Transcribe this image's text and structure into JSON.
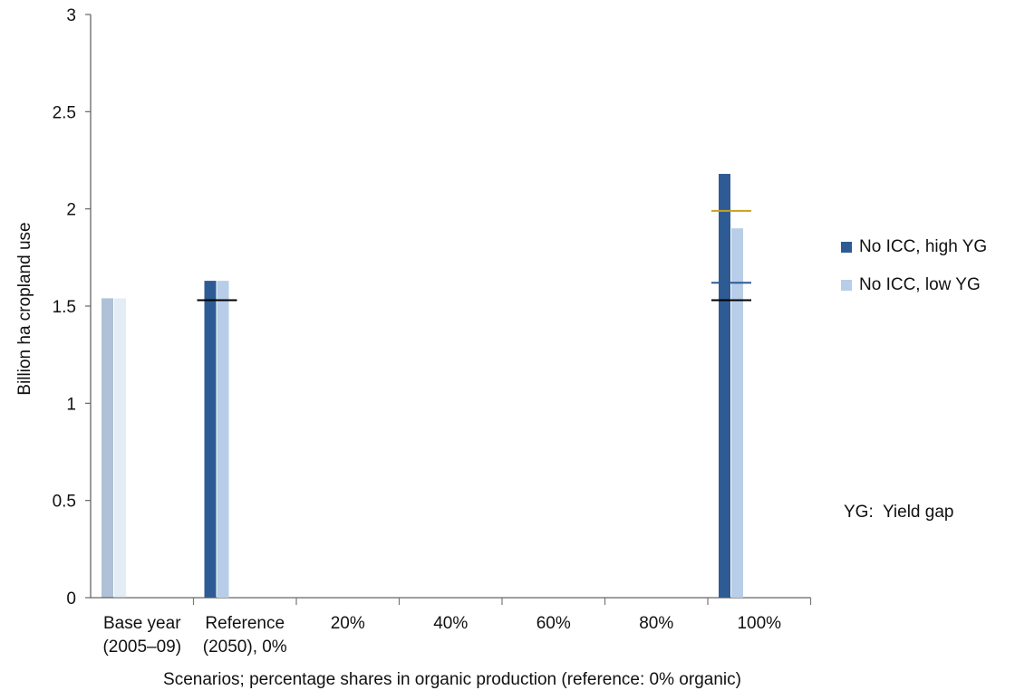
{
  "chart_data": {
    "type": "bar",
    "ylabel": "Billion ha cropland use",
    "xlabel": "Scenarios; percentage shares in organic production (reference: 0% organic)",
    "ylim": [
      0,
      3
    ],
    "yticks": [
      "0",
      "0.5",
      "1",
      "1.5",
      "2",
      "2.5",
      "3"
    ],
    "categories": [
      {
        "line1": "Base year",
        "line2": "(2005–09)"
      },
      {
        "line1": "Reference",
        "line2": "(2050), 0%"
      },
      {
        "line1": "20%",
        "line2": ""
      },
      {
        "line1": "40%",
        "line2": ""
      },
      {
        "line1": "60%",
        "line2": ""
      },
      {
        "line1": "80%",
        "line2": ""
      },
      {
        "line1": "100%",
        "line2": ""
      }
    ],
    "series": [
      {
        "name": "No ICC, high YG",
        "color": "#2e5b93",
        "values": [
          1.54,
          1.63,
          null,
          null,
          null,
          null,
          2.18
        ]
      },
      {
        "name": "No ICC, low YG",
        "color": "#b7cde8",
        "values": [
          1.54,
          1.63,
          null,
          null,
          null,
          null,
          1.9
        ]
      }
    ],
    "reference_lines": [
      {
        "color": "#000000",
        "values": [
          null,
          1.53,
          null,
          null,
          null,
          null,
          1.53
        ]
      },
      {
        "color": "#2e5b93",
        "values": [
          null,
          null,
          null,
          null,
          null,
          null,
          1.62
        ]
      },
      {
        "color": "#c8a020",
        "values": [
          null,
          null,
          null,
          null,
          null,
          null,
          1.99
        ]
      }
    ],
    "note": "YG:  Yield gap",
    "grid": false,
    "legend_position": "right"
  }
}
